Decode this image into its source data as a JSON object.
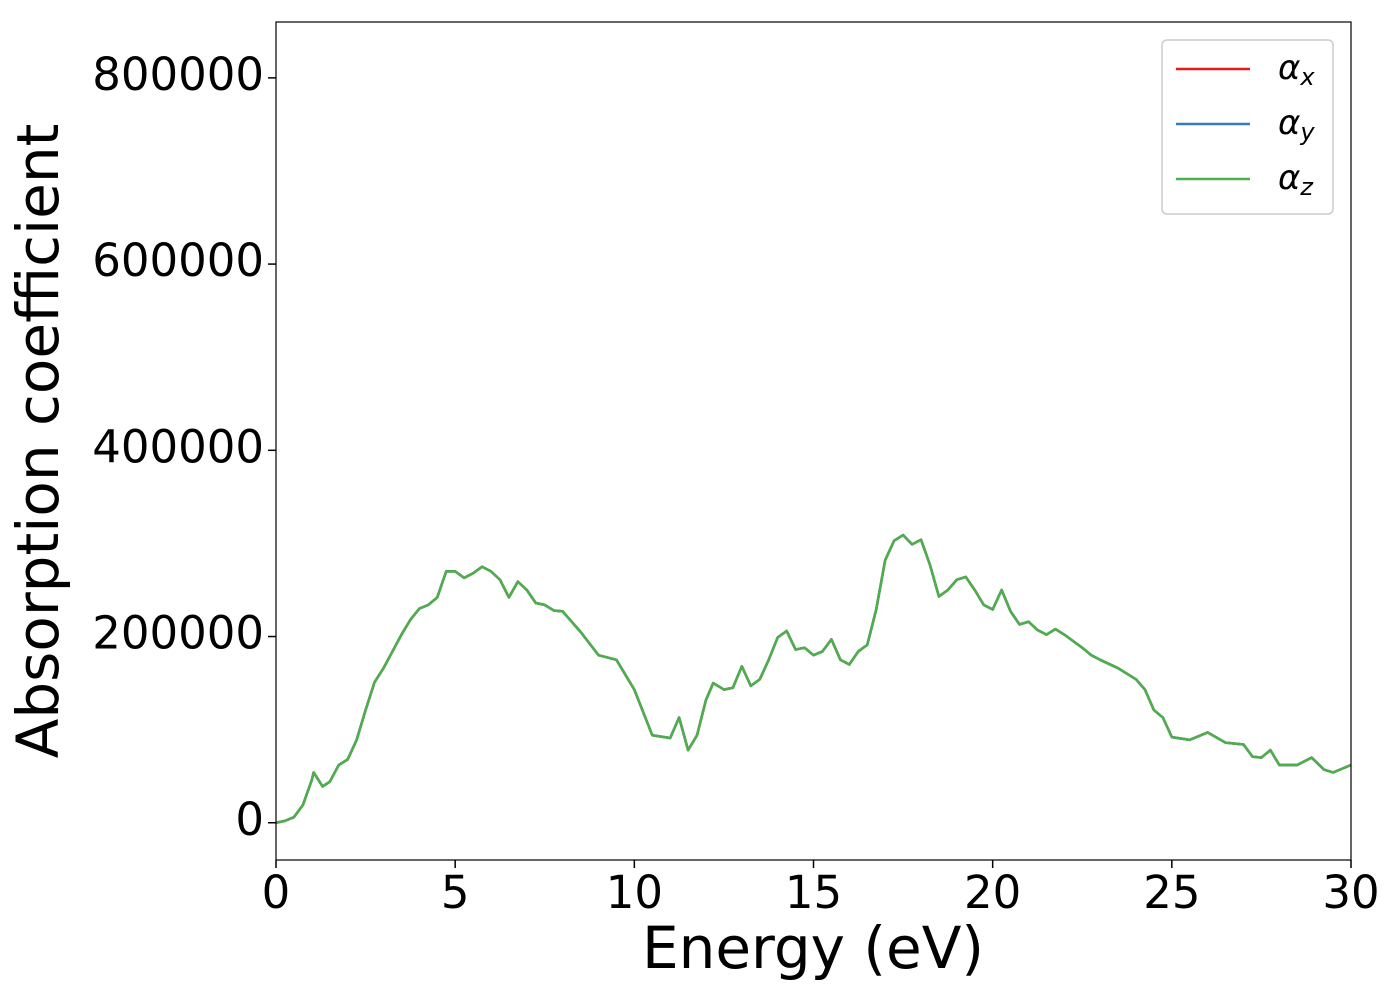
{
  "chart_data": {
    "type": "line",
    "xlabel": "Energy (eV)",
    "ylabel": "Absorption coefficient",
    "x": [
      0,
      0.25,
      0.5,
      0.75,
      1.0,
      1.05,
      1.3,
      1.5,
      1.75,
      2.0,
      2.25,
      2.5,
      2.75,
      3.0,
      3.25,
      3.5,
      3.75,
      4.0,
      4.25,
      4.5,
      4.75,
      5.0,
      5.25,
      5.5,
      5.75,
      6.0,
      6.25,
      6.5,
      6.75,
      7.0,
      7.25,
      7.5,
      7.75,
      8.0,
      8.5,
      9.0,
      9.5,
      10.0,
      10.5,
      11.0,
      11.25,
      11.5,
      11.75,
      12.0,
      12.2,
      12.5,
      12.75,
      13.0,
      13.25,
      13.5,
      13.75,
      14.0,
      14.25,
      14.5,
      14.75,
      15.0,
      15.25,
      15.5,
      15.75,
      16.0,
      16.25,
      16.5,
      16.75,
      17.0,
      17.25,
      17.5,
      17.75,
      18.0,
      18.25,
      18.5,
      18.75,
      19.0,
      19.25,
      19.5,
      19.75,
      20.0,
      20.25,
      20.5,
      20.75,
      21.0,
      21.25,
      21.5,
      21.75,
      22.0,
      22.5,
      22.75,
      23.0,
      23.5,
      24.0,
      24.25,
      24.5,
      24.75,
      25.0,
      25.5,
      26.0,
      26.5,
      27.0,
      27.25,
      27.5,
      27.75,
      28.0,
      28.5,
      28.9,
      29.25,
      29.5,
      30.0
    ],
    "series": [
      {
        "name": "αx",
        "color": "#e41a1c",
        "values": [
          0,
          2000,
          6000,
          19000,
          46000,
          54000,
          39000,
          44000,
          62000,
          68000,
          89000,
          121000,
          151000,
          166000,
          184000,
          202000,
          218000,
          230000,
          234000,
          242000,
          270000,
          270000,
          263000,
          268000,
          275000,
          270000,
          261000,
          242000,
          259000,
          250000,
          236000,
          234000,
          228000,
          227000,
          205000,
          180000,
          175000,
          143000,
          94000,
          91000,
          113000,
          78000,
          94000,
          132000,
          150000,
          143000,
          145000,
          168000,
          147000,
          154000,
          175000,
          199000,
          206000,
          186000,
          188000,
          180000,
          184000,
          197000,
          175000,
          170000,
          184000,
          191000,
          229000,
          282000,
          303000,
          309000,
          299000,
          304000,
          277000,
          243000,
          250000,
          261000,
          264000,
          250000,
          234000,
          229000,
          250000,
          227000,
          213000,
          216000,
          207000,
          202000,
          208000,
          202000,
          188000,
          180000,
          175000,
          166000,
          154000,
          143000,
          121000,
          113000,
          92000,
          89000,
          97000,
          86000,
          84000,
          71000,
          70000,
          78000,
          62000,
          62000,
          70000,
          57000,
          54000,
          62000
        ]
      },
      {
        "name": "αy",
        "color": "#377eb8",
        "values": [
          0,
          2000,
          6000,
          19000,
          46000,
          54000,
          39000,
          44000,
          62000,
          68000,
          89000,
          121000,
          151000,
          166000,
          184000,
          202000,
          218000,
          230000,
          234000,
          242000,
          270000,
          270000,
          263000,
          268000,
          275000,
          270000,
          261000,
          242000,
          259000,
          250000,
          236000,
          234000,
          228000,
          227000,
          205000,
          180000,
          175000,
          143000,
          94000,
          91000,
          113000,
          78000,
          94000,
          132000,
          150000,
          143000,
          145000,
          168000,
          147000,
          154000,
          175000,
          199000,
          206000,
          186000,
          188000,
          180000,
          184000,
          197000,
          175000,
          170000,
          184000,
          191000,
          229000,
          282000,
          303000,
          309000,
          299000,
          304000,
          277000,
          243000,
          250000,
          261000,
          264000,
          250000,
          234000,
          229000,
          250000,
          227000,
          213000,
          216000,
          207000,
          202000,
          208000,
          202000,
          188000,
          180000,
          175000,
          166000,
          154000,
          143000,
          121000,
          113000,
          92000,
          89000,
          97000,
          86000,
          84000,
          71000,
          70000,
          78000,
          62000,
          62000,
          70000,
          57000,
          54000,
          62000
        ]
      },
      {
        "name": "αz",
        "color": "#4daf4a",
        "values": [
          0,
          2000,
          6000,
          19000,
          46000,
          54000,
          39000,
          44000,
          62000,
          68000,
          89000,
          121000,
          151000,
          166000,
          184000,
          202000,
          218000,
          230000,
          234000,
          242000,
          270000,
          270000,
          263000,
          268000,
          275000,
          270000,
          261000,
          242000,
          259000,
          250000,
          236000,
          234000,
          228000,
          227000,
          205000,
          180000,
          175000,
          143000,
          94000,
          91000,
          113000,
          78000,
          94000,
          132000,
          150000,
          143000,
          145000,
          168000,
          147000,
          154000,
          175000,
          199000,
          206000,
          186000,
          188000,
          180000,
          184000,
          197000,
          175000,
          170000,
          184000,
          191000,
          229000,
          282000,
          303000,
          309000,
          299000,
          304000,
          277000,
          243000,
          250000,
          261000,
          264000,
          250000,
          234000,
          229000,
          250000,
          227000,
          213000,
          216000,
          207000,
          202000,
          208000,
          202000,
          188000,
          180000,
          175000,
          166000,
          154000,
          143000,
          121000,
          113000,
          92000,
          89000,
          97000,
          86000,
          84000,
          71000,
          70000,
          78000,
          62000,
          62000,
          70000,
          57000,
          54000,
          62000
        ]
      }
    ],
    "xlim": [
      0,
      30
    ],
    "xticks": [
      0,
      5,
      10,
      15,
      20,
      25,
      30
    ],
    "ylim": [
      -40000,
      860000
    ],
    "yticks": [
      0,
      200000,
      400000,
      600000,
      800000
    ],
    "grid": false,
    "legend": "upper right"
  }
}
